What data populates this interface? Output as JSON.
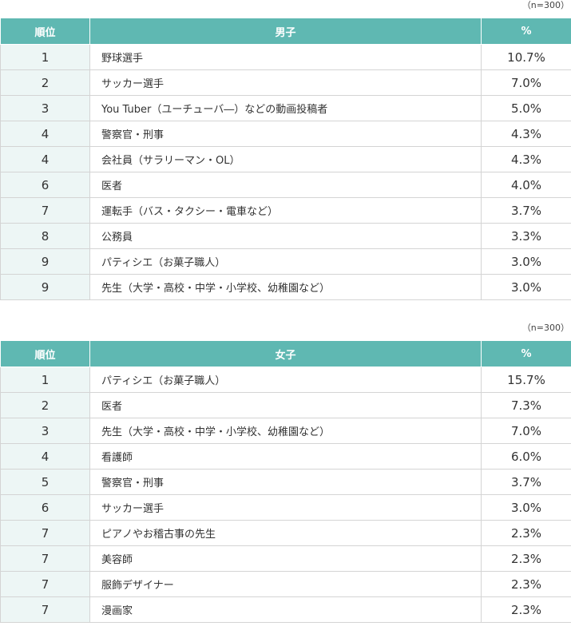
{
  "boys": {
    "n_note": "（n=300）",
    "headers": {
      "rank": "順位",
      "job": "男子",
      "pct": "%"
    },
    "rows": [
      {
        "rank": "1",
        "job": "野球選手",
        "pct": "10.7%"
      },
      {
        "rank": "2",
        "job": "サッカー選手",
        "pct": "7.0%"
      },
      {
        "rank": "3",
        "job": "You Tuber（ユーチューバ―）などの動画投稿者",
        "pct": "5.0%"
      },
      {
        "rank": "4",
        "job": "警察官・刑事",
        "pct": "4.3%"
      },
      {
        "rank": "4",
        "job": "会社員（サラリーマン・OL）",
        "pct": "4.3%"
      },
      {
        "rank": "6",
        "job": "医者",
        "pct": "4.0%"
      },
      {
        "rank": "7",
        "job": "運転手（バス・タクシー・電車など）",
        "pct": "3.7%"
      },
      {
        "rank": "8",
        "job": "公務員",
        "pct": "3.3%"
      },
      {
        "rank": "9",
        "job": "パティシエ（お菓子職人）",
        "pct": "3.0%"
      },
      {
        "rank": "9",
        "job": "先生（大学・高校・中学・小学校、幼稚園など）",
        "pct": "3.0%"
      }
    ]
  },
  "girls": {
    "n_note": "（n=300）",
    "headers": {
      "rank": "順位",
      "job": "女子",
      "pct": "%"
    },
    "rows": [
      {
        "rank": "1",
        "job": "パティシエ（お菓子職人）",
        "pct": "15.7%"
      },
      {
        "rank": "2",
        "job": "医者",
        "pct": "7.3%"
      },
      {
        "rank": "3",
        "job": "先生（大学・高校・中学・小学校、幼稚園など）",
        "pct": "7.0%"
      },
      {
        "rank": "4",
        "job": "看護師",
        "pct": "6.0%"
      },
      {
        "rank": "5",
        "job": "警察官・刑事",
        "pct": "3.7%"
      },
      {
        "rank": "6",
        "job": "サッカー選手",
        "pct": "3.0%"
      },
      {
        "rank": "7",
        "job": "ピアノやお稽古事の先生",
        "pct": "2.3%"
      },
      {
        "rank": "7",
        "job": "美容師",
        "pct": "2.3%"
      },
      {
        "rank": "7",
        "job": "服飾デザイナー",
        "pct": "2.3%"
      },
      {
        "rank": "7",
        "job": "漫画家",
        "pct": "2.3%"
      }
    ]
  }
}
